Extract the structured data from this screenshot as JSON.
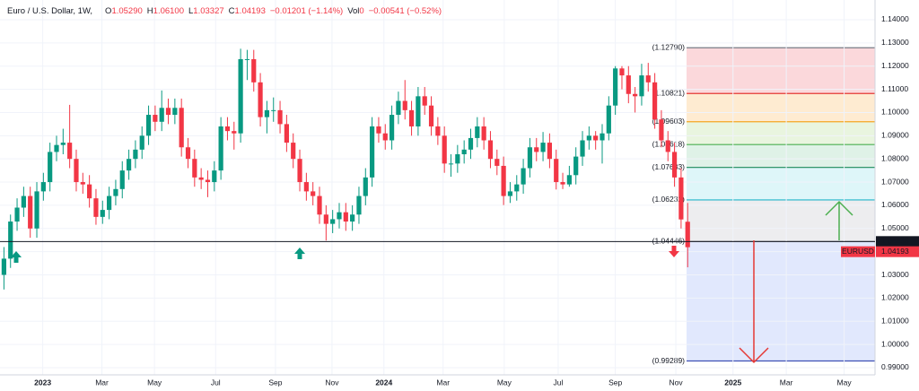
{
  "chart_data": {
    "type": "candlestick",
    "header": {
      "symbol": "Euro / U.S. Dollar, 1W,",
      "items": [
        {
          "label": "O",
          "value": "1.05290"
        },
        {
          "label": "H",
          "value": "1.06100"
        },
        {
          "label": "L",
          "value": "1.03327"
        },
        {
          "label": "C",
          "value": "1.04193"
        },
        {
          "label": "",
          "value": "−0.01201 (−1.14%)"
        },
        {
          "label": "Vol",
          "value": "0"
        },
        {
          "label": "",
          "value": "−0.00541 (−0.52%)"
        }
      ]
    },
    "up_color": "#089981",
    "down_color": "#f23645",
    "candles": [
      [
        1.03,
        1.042,
        1.0237,
        1.037
      ],
      [
        1.037,
        1.056,
        1.033,
        1.053
      ],
      [
        1.053,
        1.063,
        1.049,
        1.059
      ],
      [
        1.059,
        1.068,
        1.055,
        1.064
      ],
      [
        1.064,
        1.068,
        1.046,
        1.05
      ],
      [
        1.05,
        1.07,
        1.046,
        1.066
      ],
      [
        1.066,
        1.074,
        1.062,
        1.07
      ],
      [
        1.07,
        1.087,
        1.066,
        1.083
      ],
      [
        1.083,
        1.09,
        1.079,
        1.086
      ],
      [
        1.086,
        1.093,
        1.082,
        1.087
      ],
      [
        1.087,
        1.1033,
        1.076,
        1.08
      ],
      [
        1.08,
        1.084,
        1.066,
        1.07
      ],
      [
        1.07,
        1.074,
        1.065,
        1.069
      ],
      [
        1.069,
        1.073,
        1.059,
        1.063
      ],
      [
        1.063,
        1.067,
        1.0516,
        1.055
      ],
      [
        1.055,
        1.062,
        1.052,
        1.058
      ],
      [
        1.058,
        1.068,
        1.054,
        1.064
      ],
      [
        1.064,
        1.071,
        1.06,
        1.067
      ],
      [
        1.067,
        1.079,
        1.063,
        1.075
      ],
      [
        1.075,
        1.084,
        1.071,
        1.08
      ],
      [
        1.08,
        1.088,
        1.076,
        1.084
      ],
      [
        1.084,
        1.094,
        1.08,
        1.09
      ],
      [
        1.09,
        1.103,
        1.086,
        1.099
      ],
      [
        1.099,
        1.103,
        1.092,
        1.096
      ],
      [
        1.096,
        1.1095,
        1.092,
        1.102
      ],
      [
        1.102,
        1.106,
        1.095,
        1.099
      ],
      [
        1.099,
        1.106,
        1.095,
        1.102
      ],
      [
        1.102,
        1.106,
        1.081,
        1.085
      ],
      [
        1.085,
        1.089,
        1.076,
        1.08
      ],
      [
        1.08,
        1.084,
        1.068,
        1.072
      ],
      [
        1.072,
        1.076,
        1.067,
        1.071
      ],
      [
        1.071,
        1.075,
        1.0635,
        1.07
      ],
      [
        1.07,
        1.079,
        1.066,
        1.075
      ],
      [
        1.075,
        1.098,
        1.071,
        1.094
      ],
      [
        1.094,
        1.098,
        1.088,
        1.092
      ],
      [
        1.092,
        1.096,
        1.084,
        1.091
      ],
      [
        1.091,
        1.1275,
        1.087,
        1.123
      ],
      [
        1.123,
        1.127,
        1.114,
        1.123
      ],
      [
        1.123,
        1.127,
        1.109,
        1.113
      ],
      [
        1.113,
        1.117,
        1.094,
        1.098
      ],
      [
        1.098,
        1.105,
        1.091,
        1.101
      ],
      [
        1.101,
        1.1065,
        1.096,
        1.101
      ],
      [
        1.101,
        1.105,
        1.091,
        1.095
      ],
      [
        1.095,
        1.099,
        1.083,
        1.087
      ],
      [
        1.087,
        1.091,
        1.076,
        1.08
      ],
      [
        1.08,
        1.084,
        1.066,
        1.07
      ],
      [
        1.07,
        1.074,
        1.062,
        1.066
      ],
      [
        1.066,
        1.07,
        1.06,
        1.064
      ],
      [
        1.064,
        1.068,
        1.052,
        1.056
      ],
      [
        1.056,
        1.06,
        1.0448,
        1.052
      ],
      [
        1.052,
        1.058,
        1.048,
        1.054
      ],
      [
        1.054,
        1.061,
        1.05,
        1.057
      ],
      [
        1.057,
        1.061,
        1.049,
        1.053
      ],
      [
        1.053,
        1.06,
        1.049,
        1.056
      ],
      [
        1.056,
        1.068,
        1.052,
        1.064
      ],
      [
        1.064,
        1.076,
        1.06,
        1.072
      ],
      [
        1.072,
        1.098,
        1.068,
        1.094
      ],
      [
        1.094,
        1.098,
        1.087,
        1.091
      ],
      [
        1.091,
        1.095,
        1.084,
        1.088
      ],
      [
        1.088,
        1.103,
        1.084,
        1.099
      ],
      [
        1.099,
        1.109,
        1.095,
        1.105
      ],
      [
        1.105,
        1.114,
        1.097,
        1.101
      ],
      [
        1.101,
        1.105,
        1.09,
        1.094
      ],
      [
        1.094,
        1.111,
        1.09,
        1.107
      ],
      [
        1.107,
        1.111,
        1.099,
        1.103
      ],
      [
        1.103,
        1.107,
        1.09,
        1.094
      ],
      [
        1.094,
        1.098,
        1.086,
        1.09
      ],
      [
        1.09,
        1.094,
        1.074,
        1.078
      ],
      [
        1.078,
        1.082,
        1.0723,
        1.078
      ],
      [
        1.078,
        1.086,
        1.074,
        1.082
      ],
      [
        1.082,
        1.088,
        1.078,
        1.084
      ],
      [
        1.084,
        1.093,
        1.08,
        1.089
      ],
      [
        1.089,
        1.098,
        1.085,
        1.094
      ],
      [
        1.094,
        1.098,
        1.084,
        1.088
      ],
      [
        1.088,
        1.092,
        1.076,
        1.08
      ],
      [
        1.08,
        1.084,
        1.073,
        1.077
      ],
      [
        1.077,
        1.081,
        1.0601,
        1.064
      ],
      [
        1.064,
        1.07,
        1.061,
        1.066
      ],
      [
        1.066,
        1.073,
        1.062,
        1.069
      ],
      [
        1.069,
        1.08,
        1.065,
        1.076
      ],
      [
        1.076,
        1.089,
        1.072,
        1.085
      ],
      [
        1.085,
        1.089,
        1.079,
        1.083
      ],
      [
        1.083,
        1.0916,
        1.079,
        1.087
      ],
      [
        1.087,
        1.091,
        1.076,
        1.08
      ],
      [
        1.08,
        1.084,
        1.0668,
        1.07
      ],
      [
        1.07,
        1.074,
        1.067,
        1.069
      ],
      [
        1.069,
        1.077,
        1.068,
        1.073
      ],
      [
        1.073,
        1.085,
        1.069,
        1.081
      ],
      [
        1.081,
        1.092,
        1.077,
        1.088
      ],
      [
        1.088,
        1.094,
        1.084,
        1.09
      ],
      [
        1.09,
        1.092,
        1.084,
        1.088
      ],
      [
        1.088,
        1.095,
        1.078,
        1.091
      ],
      [
        1.091,
        1.107,
        1.088,
        1.103
      ],
      [
        1.103,
        1.12,
        1.099,
        1.119
      ],
      [
        1.119,
        1.12,
        1.11,
        1.116
      ],
      [
        1.116,
        1.12,
        1.104,
        1.108
      ],
      [
        1.108,
        1.111,
        1.1,
        1.107
      ],
      [
        1.107,
        1.121,
        1.103,
        1.116
      ],
      [
        1.116,
        1.1214,
        1.109,
        1.113
      ],
      [
        1.113,
        1.117,
        1.093,
        1.097
      ],
      [
        1.097,
        1.101,
        1.085,
        1.088
      ],
      [
        1.088,
        1.092,
        1.079,
        1.083
      ],
      [
        1.083,
        1.087,
        1.068,
        1.072
      ],
      [
        1.072,
        1.076,
        1.05,
        1.0539
      ],
      [
        1.0529,
        1.061,
        1.03327,
        1.04193
      ]
    ],
    "xlim": [
      -0.6,
      132.5
    ],
    "xticks": [
      {
        "value": 5.9,
        "label": "2023"
      },
      {
        "value": 14.9,
        "label": "Mar"
      },
      {
        "value": 22.9,
        "label": "May"
      },
      {
        "value": 32.2,
        "label": "Jul"
      },
      {
        "value": 41.3,
        "label": "Sep"
      },
      {
        "value": 49.9,
        "label": "Nov"
      },
      {
        "value": 57.8,
        "label": "2024"
      },
      {
        "value": 66.8,
        "label": "Mar"
      },
      {
        "value": 76.1,
        "label": "May"
      },
      {
        "value": 84.3,
        "label": "Jul"
      },
      {
        "value": 93.0,
        "label": "Sep"
      },
      {
        "value": 102.2,
        "label": "Nov"
      },
      {
        "value": 110.9,
        "label": "2025"
      },
      {
        "value": 119.0,
        "label": "Mar"
      },
      {
        "value": 127.8,
        "label": "May"
      }
    ],
    "ylim": [
      0.9869,
      1.1485
    ],
    "yticks": [
      {
        "value": 1.14,
        "label": "1.14000"
      },
      {
        "value": 1.13,
        "label": "1.13000"
      },
      {
        "value": 1.12,
        "label": "1.12000"
      },
      {
        "value": 1.11,
        "label": "1.11000"
      },
      {
        "value": 1.1,
        "label": "1.10000"
      },
      {
        "value": 1.09,
        "label": "1.09000"
      },
      {
        "value": 1.08,
        "label": "1.08000"
      },
      {
        "value": 1.07,
        "label": "1.07000"
      },
      {
        "value": 1.06,
        "label": "1.06000"
      },
      {
        "value": 1.05,
        "label": "1.05000"
      },
      {
        "value": 1.04,
        "label": "1.04000"
      },
      {
        "value": 1.03,
        "label": "1.03000"
      },
      {
        "value": 1.02,
        "label": "1.02000"
      },
      {
        "value": 1.01,
        "label": "1.01000"
      },
      {
        "value": 1.0,
        "label": "1.00000"
      },
      {
        "value": 0.99,
        "label": "0.99000"
      }
    ],
    "fib_levels": [
      {
        "value": 1.1279,
        "label": "(1.12790)",
        "color": "#787b86",
        "fill": "#f7a9b0"
      },
      {
        "value": 1.10821,
        "label": "(1.10821)",
        "color": "#e53935",
        "fill": "#fcd29a"
      },
      {
        "value": 1.09603,
        "label": "(1.09603)",
        "color": "#f5a623",
        "fill": "#cfe8b9"
      },
      {
        "value": 1.08618,
        "label": "(1.08618)",
        "color": "#4caf50",
        "fill": "#b9e2c9"
      },
      {
        "value": 1.07633,
        "label": "(1.07633)",
        "color": "#1b8a5a",
        "fill": "#b6ecf2"
      },
      {
        "value": 1.06232,
        "label": "(1.06232)",
        "color": "#22b5c9",
        "fill": "#d6d8dc"
      },
      {
        "value": 1.04446,
        "label": "(1.04446)",
        "color": "#9598a1",
        "fill": "#bccdfa"
      },
      {
        "value": 0.99289,
        "label": "(0.99289)",
        "color": "#3f51b5"
      }
    ],
    "price_line": {
      "value": 1.04438,
      "label": "1.04438"
    },
    "last": {
      "symbol": "EURUSD",
      "value": 1.04193,
      "label": "1.04193"
    }
  }
}
